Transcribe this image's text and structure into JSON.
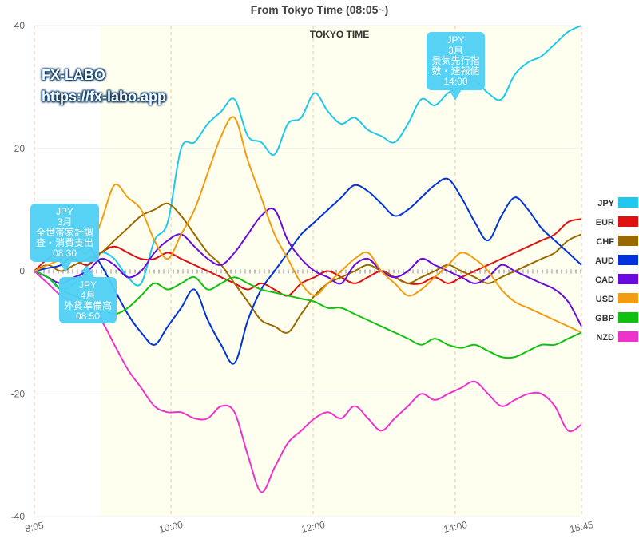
{
  "chart_data": {
    "type": "line",
    "title": "From Tokyo Time  (08:05~)",
    "zone_label": "TOKYO TIME",
    "ylim": [
      -40,
      40
    ],
    "yticks": [
      40,
      20,
      0,
      -20,
      -40
    ],
    "xticks": [
      "8:05",
      "10:00",
      "12:00",
      "14:00",
      "15:45"
    ],
    "grid": true,
    "legend_position": "right",
    "series": [
      {
        "name": "JPY",
        "color": "#1ec8ee",
        "values": [
          0,
          -1,
          -3,
          -2,
          1,
          3,
          2,
          -1,
          -2,
          5,
          8,
          20,
          21,
          24,
          26,
          28,
          22,
          21,
          19,
          24,
          25,
          29,
          26,
          24,
          25,
          23,
          22,
          21,
          24,
          28,
          27,
          29,
          30,
          31,
          29,
          28,
          32,
          34,
          35,
          37,
          39,
          40
        ]
      },
      {
        "name": "EUR",
        "color": "#e01010",
        "values": [
          0,
          2,
          3,
          2,
          1,
          3,
          4,
          3,
          2,
          2,
          3,
          2,
          1,
          0,
          -1,
          -2,
          -3,
          -2,
          -3,
          -4,
          -2,
          -1,
          0,
          -1,
          -2,
          -1,
          0,
          -1,
          -2,
          -2,
          -1,
          -2,
          -1,
          0,
          1,
          2,
          3,
          4,
          5,
          6,
          8,
          8.5
        ]
      },
      {
        "name": "CHF",
        "color": "#9a6a00",
        "values": [
          0,
          1,
          0,
          1,
          2,
          3,
          5,
          7,
          9,
          10,
          11,
          9,
          6,
          3,
          1,
          -2,
          -5,
          -8,
          -9,
          -10,
          -7,
          -4,
          -2,
          -1,
          0,
          1,
          0,
          -1,
          -2,
          -1,
          0,
          1,
          0,
          -1,
          -2,
          -1,
          0,
          1,
          2,
          3,
          5,
          6
        ]
      },
      {
        "name": "AUD",
        "color": "#0033dd",
        "values": [
          0,
          0.5,
          1,
          3,
          4,
          1,
          -3,
          -7,
          -10,
          -12,
          -9,
          -6,
          -3,
          -8,
          -12,
          -15,
          -8,
          -3,
          0,
          3,
          6,
          8,
          10,
          12,
          14,
          13,
          11,
          9,
          10,
          12,
          14,
          15,
          12,
          8,
          5,
          9,
          12,
          10,
          7,
          5,
          3,
          1
        ]
      },
      {
        "name": "CAD",
        "color": "#6a0adf",
        "values": [
          0,
          -1,
          -2,
          -1,
          0,
          2,
          1,
          -1,
          0,
          3,
          5,
          6,
          4,
          2,
          1,
          3,
          6,
          9,
          10,
          5,
          2,
          0,
          -1,
          -2,
          1,
          2,
          0,
          -1,
          0,
          2,
          1,
          0,
          -1,
          -2,
          -1,
          1,
          0,
          -1,
          -2,
          -3,
          -5,
          -9
        ]
      },
      {
        "name": "USD",
        "color": "#f39c12",
        "values": [
          0,
          1,
          2,
          4,
          3,
          8,
          14,
          12,
          10,
          5,
          2,
          6,
          10,
          16,
          22,
          25,
          18,
          12,
          6,
          2,
          -2,
          -4,
          -2,
          0,
          2,
          3,
          0,
          -2,
          -4,
          -3,
          -1,
          1,
          3,
          2,
          0,
          -3,
          -5,
          -6,
          -7,
          -8,
          -9,
          -10
        ]
      },
      {
        "name": "GBP",
        "color": "#12c012",
        "values": [
          0,
          -1,
          -3,
          -4,
          -5,
          -6,
          -7,
          -6,
          -4,
          -2,
          -3,
          -2,
          -1,
          -3,
          -2,
          -1,
          -2,
          -3,
          -3.5,
          -4,
          -4.5,
          -5,
          -6,
          -6,
          -7,
          -8,
          -9,
          -10,
          -11,
          -12,
          -11,
          -12,
          -12.5,
          -12,
          -13,
          -14,
          -14,
          -13,
          -12,
          -12,
          -11,
          -10
        ]
      },
      {
        "name": "NZD",
        "color": "#ee33cc",
        "values": [
          0,
          -2,
          -4,
          -5,
          -6,
          -8,
          -12,
          -16,
          -19,
          -22,
          -23,
          -23,
          -24,
          -24,
          -22,
          -23,
          -30,
          -36,
          -32,
          -28,
          -26,
          -24,
          -23,
          -24,
          -22,
          -24,
          -26,
          -24,
          -22,
          -20,
          -21,
          -20,
          -19,
          -18,
          -20,
          -22,
          -21,
          -20,
          -20,
          -22,
          -26,
          -25
        ]
      }
    ],
    "annotations": [
      {
        "lines": [
          "JPY",
          "3月",
          "全世帯家計調",
          "査・消費支出",
          "08:30"
        ]
      },
      {
        "lines": [
          "JPY",
          "4月",
          "外貨準備高",
          "08:50"
        ]
      },
      {
        "lines": [
          "JPY",
          "3月",
          "景気先行指",
          "数・速報値",
          "14:00"
        ]
      }
    ]
  },
  "brand": {
    "name": "FX-LABO",
    "url": "https://fx-labo.app"
  }
}
